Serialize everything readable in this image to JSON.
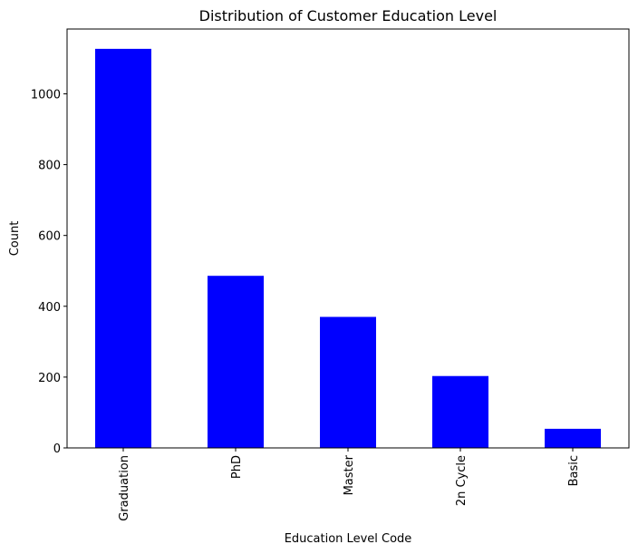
{
  "chart_data": {
    "type": "bar",
    "title": "Distribution of Customer Education Level",
    "xlabel": "Education Level Code",
    "ylabel": "Count",
    "categories": [
      "Graduation",
      "PhD",
      "Master",
      "2n Cycle",
      "Basic"
    ],
    "values": [
      1127,
      486,
      370,
      203,
      54
    ],
    "ylim": [
      0,
      1183
    ],
    "yticks": [
      0,
      200,
      400,
      600,
      800,
      1000
    ],
    "x_tick_rotation": "vertical",
    "bar_color": "#0000ff",
    "grid": false,
    "legend": "none"
  }
}
